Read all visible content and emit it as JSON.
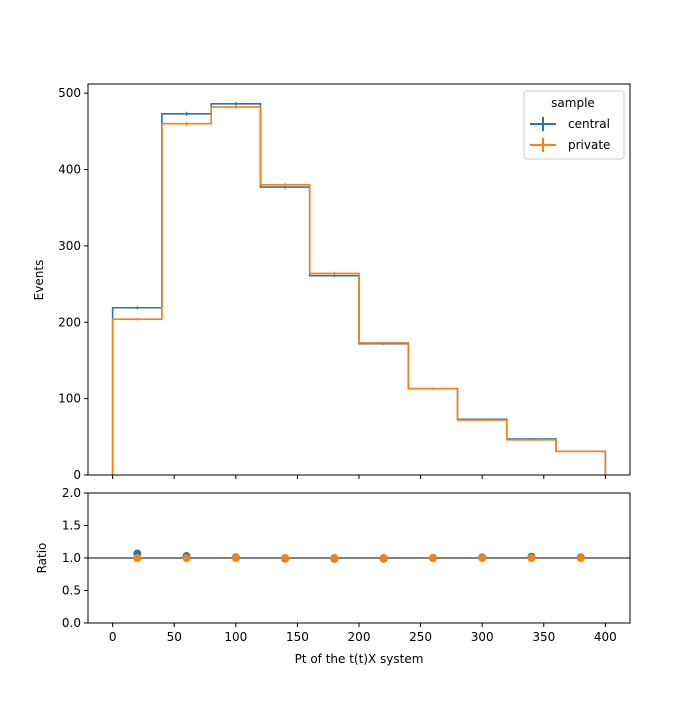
{
  "chart_data": [
    {
      "type": "line",
      "subtype": "histogram-step",
      "xlabel": "",
      "ylabel": "Events",
      "xlim": [
        -20,
        420
      ],
      "ylim": [
        0,
        512
      ],
      "bin_edges": [
        0,
        40,
        80,
        120,
        160,
        200,
        240,
        280,
        320,
        360,
        400
      ],
      "x_ticks": [
        "0",
        "50",
        "100",
        "150",
        "200",
        "250",
        "300",
        "350",
        "400"
      ],
      "y_ticks": [
        {
          "value": 0,
          "label": "0"
        },
        {
          "value": 100,
          "label": "100"
        },
        {
          "value": 200,
          "label": "200"
        },
        {
          "value": 300,
          "label": "300"
        },
        {
          "value": 400,
          "label": "400"
        },
        {
          "value": 500,
          "label": "500"
        }
      ],
      "legend": {
        "title": "sample",
        "placement": "top-right"
      },
      "series": [
        {
          "name": "central",
          "color": "#1f77b4",
          "values": [
            219,
            473,
            486,
            377,
            261,
            172,
            113,
            73,
            47,
            31
          ]
        },
        {
          "name": "private",
          "color": "#ff7f0e",
          "values": [
            204,
            460,
            482,
            380,
            264,
            173,
            113,
            72,
            46,
            31
          ]
        }
      ]
    },
    {
      "type": "scatter",
      "xlabel": "Pt of the t(t)X system",
      "ylabel": "Ratio",
      "xlim": [
        -20,
        420
      ],
      "ylim": [
        0,
        2
      ],
      "reference_line": 1.0,
      "x_ticks": [
        {
          "value": 0,
          "label": "0"
        },
        {
          "value": 50,
          "label": "50"
        },
        {
          "value": 100,
          "label": "100"
        },
        {
          "value": 150,
          "label": "150"
        },
        {
          "value": 200,
          "label": "200"
        },
        {
          "value": 250,
          "label": "250"
        },
        {
          "value": 300,
          "label": "300"
        },
        {
          "value": 350,
          "label": "350"
        },
        {
          "value": 400,
          "label": "400"
        }
      ],
      "y_ticks": [
        {
          "value": 0,
          "label": "0.0"
        },
        {
          "value": 0.5,
          "label": "0.5"
        },
        {
          "value": 1.0,
          "label": "1.0"
        },
        {
          "value": 1.5,
          "label": "1.5"
        },
        {
          "value": 2.0,
          "label": "2.0"
        }
      ],
      "series": [
        {
          "name": "central",
          "color": "#1f77b4",
          "x": [
            20,
            60,
            100,
            140,
            180,
            220,
            260,
            300,
            340,
            380
          ],
          "y": [
            1.07,
            1.03,
            1.01,
            0.99,
            0.99,
            0.99,
            1.0,
            1.01,
            1.02,
            1.01
          ]
        },
        {
          "name": "private",
          "color": "#ff7f0e",
          "x": [
            20,
            60,
            100,
            140,
            180,
            220,
            260,
            300,
            340,
            380
          ],
          "y": [
            1.0,
            1.0,
            1.0,
            1.0,
            1.0,
            1.0,
            1.0,
            1.0,
            1.0,
            1.0
          ]
        }
      ]
    }
  ]
}
